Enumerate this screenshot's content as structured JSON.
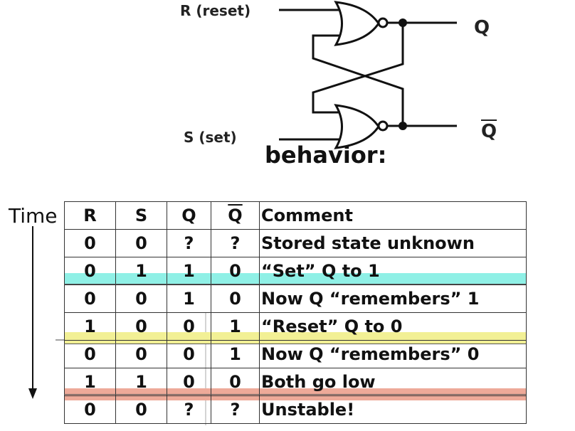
{
  "circuit": {
    "r_label": "R (reset)",
    "s_label": "S (set)",
    "q_label": "Q",
    "qbar_label": "Q"
  },
  "behavior_heading": "behavior:",
  "time_label": "Time",
  "table": {
    "headers": [
      "R",
      "S",
      "Q",
      "Q",
      "Comment"
    ],
    "rows": [
      {
        "r": "0",
        "s": "0",
        "q": "?",
        "qbar": "?",
        "comment": "Stored state unknown"
      },
      {
        "r": "0",
        "s": "1",
        "q": "1",
        "qbar": "0",
        "comment": "“Set” Q to 1"
      },
      {
        "r": "0",
        "s": "0",
        "q": "1",
        "qbar": "0",
        "comment": "Now Q “remembers” 1"
      },
      {
        "r": "1",
        "s": "0",
        "q": "0",
        "qbar": "1",
        "comment": "“Reset” Q to 0"
      },
      {
        "r": "0",
        "s": "0",
        "q": "0",
        "qbar": "1",
        "comment": "Now Q “remembers” 0"
      },
      {
        "r": "1",
        "s": "1",
        "q": "0",
        "qbar": "0",
        "comment": "Both go low"
      },
      {
        "r": "0",
        "s": "0",
        "q": "?",
        "qbar": "?",
        "comment": "Unstable!"
      }
    ]
  },
  "highlight_colors": {
    "set_row": "#8ff0e6",
    "reset_row": "#f2f095",
    "both_low_row": "#eeaa99"
  }
}
